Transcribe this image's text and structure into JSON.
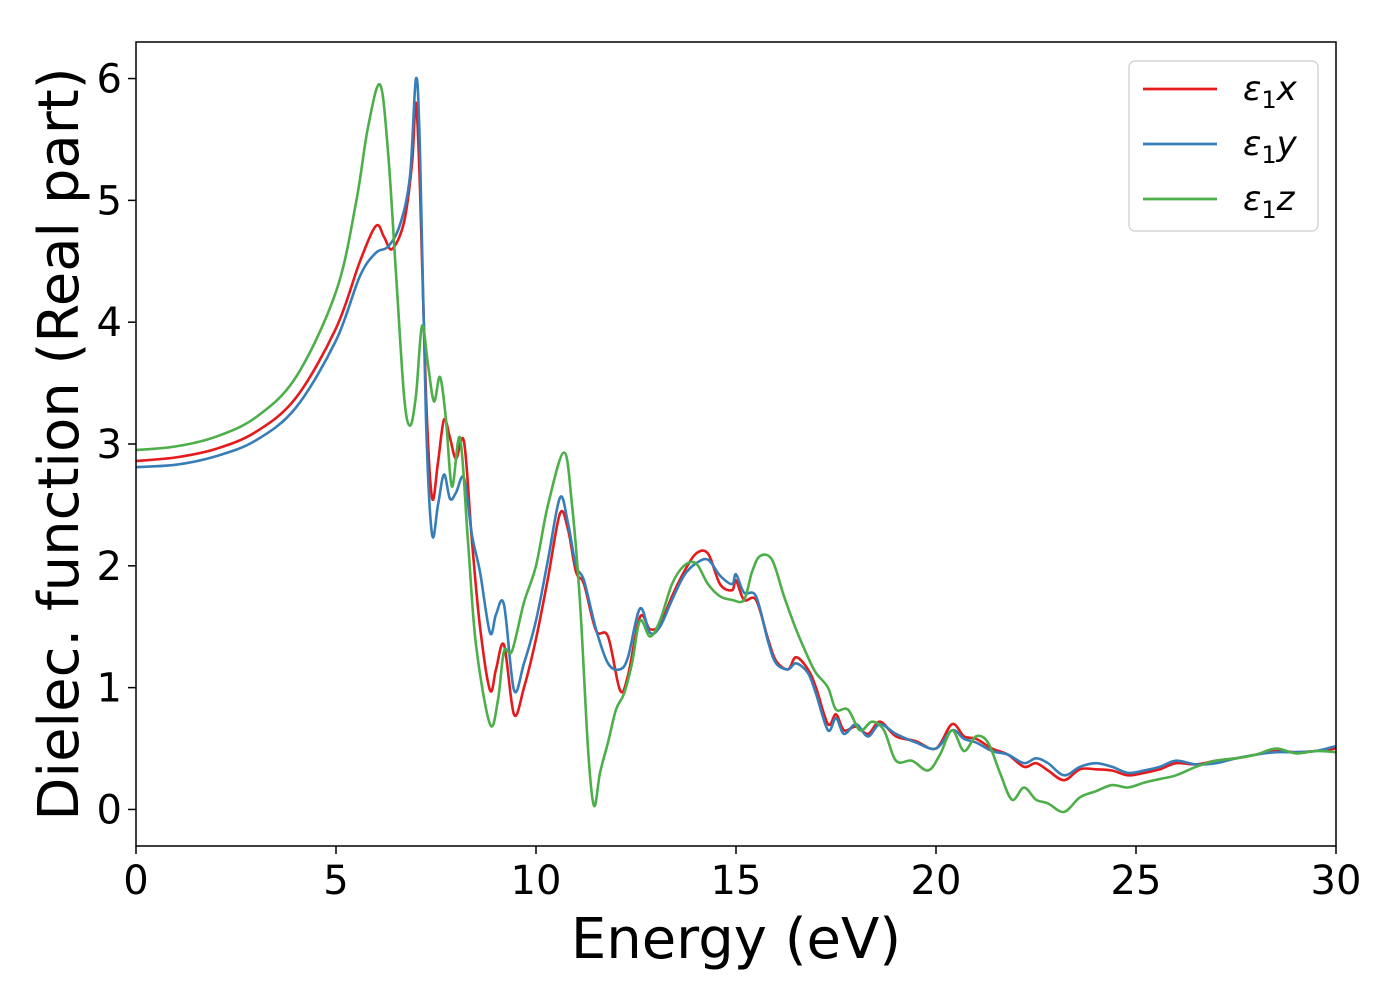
{
  "chart_data": {
    "type": "line",
    "xlabel": "Energy (eV)",
    "ylabel": "Dielec. function (Real part)",
    "xlim": [
      0,
      30
    ],
    "ylim": [
      -0.3,
      6.3
    ],
    "x_ticks": [
      "0",
      "5",
      "10",
      "15",
      "20",
      "25",
      "30"
    ],
    "y_ticks": [
      "0",
      "1",
      "2",
      "3",
      "4",
      "5",
      "6"
    ],
    "grid": false,
    "legend_position": "top-right",
    "series": [
      {
        "name": "ε₁x",
        "legend_main": "ε",
        "legend_sub": "1",
        "legend_suffix": "x",
        "color": "#e41a1c",
        "points": [
          [
            0,
            2.86
          ],
          [
            1,
            2.89
          ],
          [
            2,
            2.96
          ],
          [
            3,
            3.1
          ],
          [
            4,
            3.38
          ],
          [
            5,
            3.95
          ],
          [
            5.6,
            4.5
          ],
          [
            6.0,
            4.79
          ],
          [
            6.2,
            4.7
          ],
          [
            6.4,
            4.6
          ],
          [
            6.7,
            4.82
          ],
          [
            6.9,
            5.3
          ],
          [
            7.0,
            5.8
          ],
          [
            7.1,
            5.1
          ],
          [
            7.25,
            3.4
          ],
          [
            7.4,
            2.56
          ],
          [
            7.55,
            2.85
          ],
          [
            7.7,
            3.2
          ],
          [
            7.85,
            3.05
          ],
          [
            8.0,
            2.88
          ],
          [
            8.2,
            3.02
          ],
          [
            8.4,
            2.2
          ],
          [
            8.6,
            1.5
          ],
          [
            8.85,
            0.98
          ],
          [
            9.0,
            1.15
          ],
          [
            9.2,
            1.35
          ],
          [
            9.45,
            0.78
          ],
          [
            9.7,
            1.0
          ],
          [
            10.0,
            1.4
          ],
          [
            10.3,
            1.9
          ],
          [
            10.6,
            2.43
          ],
          [
            10.8,
            2.3
          ],
          [
            11.0,
            1.95
          ],
          [
            11.2,
            1.85
          ],
          [
            11.5,
            1.47
          ],
          [
            11.8,
            1.42
          ],
          [
            12.1,
            0.98
          ],
          [
            12.3,
            1.1
          ],
          [
            12.6,
            1.58
          ],
          [
            12.85,
            1.48
          ],
          [
            13.1,
            1.52
          ],
          [
            13.4,
            1.75
          ],
          [
            13.7,
            1.95
          ],
          [
            14.0,
            2.1
          ],
          [
            14.3,
            2.1
          ],
          [
            14.6,
            1.85
          ],
          [
            14.9,
            1.8
          ],
          [
            15.0,
            1.88
          ],
          [
            15.2,
            1.72
          ],
          [
            15.5,
            1.72
          ],
          [
            15.8,
            1.4
          ],
          [
            16.0,
            1.22
          ],
          [
            16.3,
            1.15
          ],
          [
            16.5,
            1.25
          ],
          [
            16.8,
            1.15
          ],
          [
            17.0,
            1.0
          ],
          [
            17.3,
            0.7
          ],
          [
            17.5,
            0.78
          ],
          [
            17.7,
            0.65
          ],
          [
            18.0,
            0.68
          ],
          [
            18.3,
            0.62
          ],
          [
            18.6,
            0.72
          ],
          [
            19.0,
            0.6
          ],
          [
            19.5,
            0.56
          ],
          [
            20.0,
            0.5
          ],
          [
            20.4,
            0.7
          ],
          [
            20.7,
            0.6
          ],
          [
            21.0,
            0.58
          ],
          [
            21.4,
            0.5
          ],
          [
            21.8,
            0.45
          ],
          [
            22.2,
            0.35
          ],
          [
            22.5,
            0.38
          ],
          [
            22.8,
            0.32
          ],
          [
            23.2,
            0.24
          ],
          [
            23.6,
            0.33
          ],
          [
            24.0,
            0.33
          ],
          [
            24.4,
            0.32
          ],
          [
            24.8,
            0.28
          ],
          [
            25.2,
            0.3
          ],
          [
            25.6,
            0.33
          ],
          [
            26.0,
            0.38
          ],
          [
            26.5,
            0.37
          ],
          [
            27.0,
            0.4
          ],
          [
            27.5,
            0.42
          ],
          [
            28.0,
            0.45
          ],
          [
            28.5,
            0.48
          ],
          [
            29.0,
            0.47
          ],
          [
            29.5,
            0.48
          ],
          [
            30.0,
            0.5
          ]
        ]
      },
      {
        "name": "ε₁y",
        "legend_main": "ε",
        "legend_sub": "1",
        "legend_suffix": "y",
        "color": "#377eb8",
        "points": [
          [
            0,
            2.81
          ],
          [
            1,
            2.83
          ],
          [
            2,
            2.9
          ],
          [
            3,
            3.03
          ],
          [
            4,
            3.3
          ],
          [
            5,
            3.85
          ],
          [
            5.6,
            4.38
          ],
          [
            6.0,
            4.57
          ],
          [
            6.3,
            4.62
          ],
          [
            6.6,
            4.8
          ],
          [
            6.85,
            5.2
          ],
          [
            7.0,
            6.0
          ],
          [
            7.1,
            5.4
          ],
          [
            7.25,
            3.2
          ],
          [
            7.4,
            2.26
          ],
          [
            7.55,
            2.5
          ],
          [
            7.7,
            2.75
          ],
          [
            7.85,
            2.55
          ],
          [
            8.0,
            2.6
          ],
          [
            8.2,
            2.72
          ],
          [
            8.4,
            2.25
          ],
          [
            8.6,
            1.95
          ],
          [
            8.85,
            1.45
          ],
          [
            9.0,
            1.6
          ],
          [
            9.2,
            1.68
          ],
          [
            9.45,
            0.98
          ],
          [
            9.7,
            1.2
          ],
          [
            10.0,
            1.55
          ],
          [
            10.3,
            2.05
          ],
          [
            10.6,
            2.56
          ],
          [
            10.8,
            2.35
          ],
          [
            11.0,
            2.0
          ],
          [
            11.2,
            1.88
          ],
          [
            11.5,
            1.48
          ],
          [
            11.8,
            1.2
          ],
          [
            12.1,
            1.15
          ],
          [
            12.3,
            1.25
          ],
          [
            12.6,
            1.65
          ],
          [
            12.85,
            1.45
          ],
          [
            13.1,
            1.5
          ],
          [
            13.4,
            1.72
          ],
          [
            13.7,
            1.92
          ],
          [
            14.0,
            2.02
          ],
          [
            14.3,
            2.05
          ],
          [
            14.6,
            1.92
          ],
          [
            14.9,
            1.85
          ],
          [
            15.0,
            1.93
          ],
          [
            15.2,
            1.78
          ],
          [
            15.5,
            1.75
          ],
          [
            15.8,
            1.38
          ],
          [
            16.0,
            1.2
          ],
          [
            16.3,
            1.15
          ],
          [
            16.5,
            1.2
          ],
          [
            16.8,
            1.12
          ],
          [
            17.0,
            0.95
          ],
          [
            17.3,
            0.65
          ],
          [
            17.5,
            0.75
          ],
          [
            17.7,
            0.62
          ],
          [
            18.0,
            0.7
          ],
          [
            18.3,
            0.6
          ],
          [
            18.6,
            0.7
          ],
          [
            19.0,
            0.62
          ],
          [
            19.5,
            0.55
          ],
          [
            20.0,
            0.5
          ],
          [
            20.4,
            0.65
          ],
          [
            20.7,
            0.58
          ],
          [
            21.0,
            0.55
          ],
          [
            21.4,
            0.48
          ],
          [
            21.8,
            0.45
          ],
          [
            22.2,
            0.38
          ],
          [
            22.5,
            0.42
          ],
          [
            22.8,
            0.38
          ],
          [
            23.2,
            0.28
          ],
          [
            23.6,
            0.35
          ],
          [
            24.0,
            0.38
          ],
          [
            24.4,
            0.35
          ],
          [
            24.8,
            0.3
          ],
          [
            25.2,
            0.32
          ],
          [
            25.6,
            0.35
          ],
          [
            26.0,
            0.4
          ],
          [
            26.5,
            0.37
          ],
          [
            27.0,
            0.38
          ],
          [
            27.5,
            0.42
          ],
          [
            28.0,
            0.45
          ],
          [
            28.5,
            0.47
          ],
          [
            29.0,
            0.47
          ],
          [
            29.5,
            0.48
          ],
          [
            30.0,
            0.52
          ]
        ]
      },
      {
        "name": "ε₁z",
        "legend_main": "ε",
        "legend_sub": "1",
        "legend_suffix": "z",
        "color": "#4daf4a",
        "points": [
          [
            0,
            2.95
          ],
          [
            1,
            2.98
          ],
          [
            2,
            3.06
          ],
          [
            3,
            3.22
          ],
          [
            4,
            3.55
          ],
          [
            5,
            4.25
          ],
          [
            5.5,
            4.98
          ],
          [
            5.8,
            5.6
          ],
          [
            6.1,
            5.95
          ],
          [
            6.3,
            5.4
          ],
          [
            6.5,
            4.4
          ],
          [
            6.7,
            3.4
          ],
          [
            6.85,
            3.15
          ],
          [
            7.0,
            3.4
          ],
          [
            7.15,
            3.97
          ],
          [
            7.3,
            3.65
          ],
          [
            7.45,
            3.35
          ],
          [
            7.6,
            3.55
          ],
          [
            7.75,
            3.2
          ],
          [
            7.9,
            2.65
          ],
          [
            8.1,
            3.05
          ],
          [
            8.3,
            2.2
          ],
          [
            8.5,
            1.35
          ],
          [
            8.85,
            0.7
          ],
          [
            9.05,
            0.9
          ],
          [
            9.2,
            1.3
          ],
          [
            9.4,
            1.3
          ],
          [
            9.7,
            1.7
          ],
          [
            10.0,
            2.0
          ],
          [
            10.3,
            2.5
          ],
          [
            10.7,
            2.93
          ],
          [
            10.9,
            2.5
          ],
          [
            11.1,
            1.7
          ],
          [
            11.3,
            0.5
          ],
          [
            11.45,
            0.03
          ],
          [
            11.6,
            0.3
          ],
          [
            11.8,
            0.55
          ],
          [
            12.0,
            0.82
          ],
          [
            12.2,
            0.95
          ],
          [
            12.4,
            1.2
          ],
          [
            12.6,
            1.55
          ],
          [
            12.85,
            1.42
          ],
          [
            13.1,
            1.55
          ],
          [
            13.4,
            1.85
          ],
          [
            13.7,
            2.0
          ],
          [
            14.0,
            2.02
          ],
          [
            14.3,
            1.85
          ],
          [
            14.6,
            1.75
          ],
          [
            14.9,
            1.72
          ],
          [
            15.2,
            1.72
          ],
          [
            15.4,
            1.95
          ],
          [
            15.6,
            2.08
          ],
          [
            15.9,
            2.05
          ],
          [
            16.2,
            1.75
          ],
          [
            16.5,
            1.48
          ],
          [
            16.8,
            1.25
          ],
          [
            17.0,
            1.12
          ],
          [
            17.3,
            1.0
          ],
          [
            17.5,
            0.82
          ],
          [
            17.8,
            0.82
          ],
          [
            18.1,
            0.65
          ],
          [
            18.4,
            0.72
          ],
          [
            18.7,
            0.65
          ],
          [
            19.0,
            0.4
          ],
          [
            19.4,
            0.4
          ],
          [
            19.8,
            0.32
          ],
          [
            20.1,
            0.45
          ],
          [
            20.4,
            0.65
          ],
          [
            20.7,
            0.48
          ],
          [
            21.0,
            0.6
          ],
          [
            21.3,
            0.55
          ],
          [
            21.6,
            0.3
          ],
          [
            21.9,
            0.08
          ],
          [
            22.2,
            0.18
          ],
          [
            22.5,
            0.08
          ],
          [
            22.8,
            0.05
          ],
          [
            23.2,
            -0.02
          ],
          [
            23.6,
            0.1
          ],
          [
            24.0,
            0.15
          ],
          [
            24.4,
            0.2
          ],
          [
            24.8,
            0.18
          ],
          [
            25.2,
            0.22
          ],
          [
            25.6,
            0.25
          ],
          [
            26.0,
            0.28
          ],
          [
            26.5,
            0.35
          ],
          [
            27.0,
            0.4
          ],
          [
            27.5,
            0.42
          ],
          [
            28.0,
            0.45
          ],
          [
            28.5,
            0.5
          ],
          [
            29.0,
            0.46
          ],
          [
            29.5,
            0.48
          ],
          [
            30.0,
            0.47
          ]
        ]
      }
    ]
  }
}
